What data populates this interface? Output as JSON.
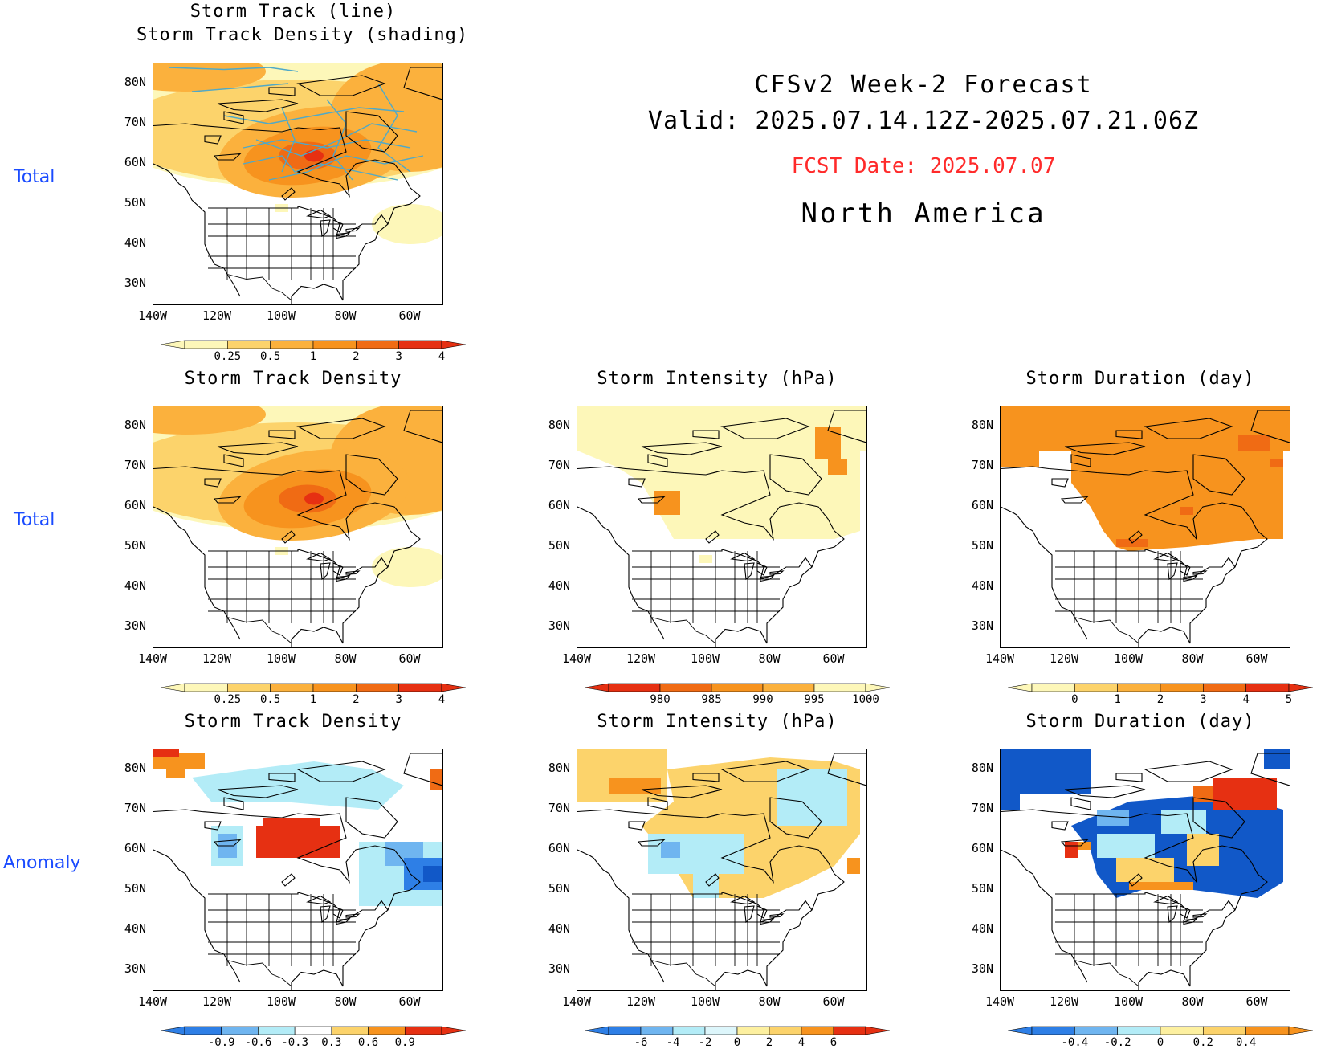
{
  "header": {
    "title": "CFSv2 Week-2 Forecast",
    "valid": "Valid: 2025.07.14.12Z-2025.07.21.06Z",
    "fcst_date": "FCST Date: 2025.07.07",
    "region": "North America"
  },
  "row_labels": [
    "Total",
    "Total",
    "Anomaly"
  ],
  "axes": {
    "lat_labels": [
      "80N",
      "70N",
      "60N",
      "50N",
      "40N",
      "30N"
    ],
    "lon_labels": [
      "140W",
      "120W",
      "100W",
      "80W",
      "60W"
    ]
  },
  "colors": {
    "pale_yellow": "#fdf7b9",
    "light_orange": "#fcd36b",
    "mid_orange": "#fbb13d",
    "orange": "#f7931e",
    "dark_orange": "#f06b14",
    "red": "#e63012",
    "dark_red": "#b40f0f",
    "light_blue": "#b3ecf7",
    "sky_blue": "#6fb5f0",
    "blue": "#2e7fe6",
    "dark_blue": "#1158c8",
    "track_line": "#4fa9c8",
    "label_blue": "#1a4bff",
    "fcst_red": "#ff2a2a"
  },
  "panels": [
    {
      "id": "track-total",
      "title_lines": [
        "Storm Track (line)",
        "Storm Track Density (shading)"
      ],
      "colorbar_labels": [
        "0.25",
        "0.5",
        "1",
        "2",
        "3",
        "4"
      ],
      "colorbar_colors": [
        "#fdf7b9",
        "#fcd36b",
        "#fbb13d",
        "#f7931e",
        "#f06b14",
        "#e63012"
      ]
    },
    {
      "id": "density-total",
      "title_lines": [
        "Storm Track Density"
      ],
      "colorbar_labels": [
        "0.25",
        "0.5",
        "1",
        "2",
        "3",
        "4"
      ],
      "colorbar_colors": [
        "#fdf7b9",
        "#fcd36b",
        "#fbb13d",
        "#f7931e",
        "#f06b14",
        "#e63012"
      ]
    },
    {
      "id": "intensity-total",
      "title_lines": [
        "Storm Intensity (hPa)"
      ],
      "colorbar_labels": [
        "980",
        "985",
        "990",
        "995",
        "1000"
      ],
      "colorbar_colors": [
        "#e63012",
        "#f06b14",
        "#f7931e",
        "#fbb13d",
        "#fdf7b9"
      ]
    },
    {
      "id": "duration-total",
      "title_lines": [
        "Storm Duration (day)"
      ],
      "colorbar_labels": [
        "0",
        "1",
        "2",
        "3",
        "4",
        "5"
      ],
      "colorbar_colors": [
        "#fdf7b9",
        "#fcd36b",
        "#fbb13d",
        "#f7931e",
        "#f06b14",
        "#e63012"
      ]
    },
    {
      "id": "density-anom",
      "title_lines": [
        "Storm Track Density"
      ],
      "colorbar_labels": [
        "-0.9",
        "-0.6",
        "-0.3",
        "0.3",
        "0.6",
        "0.9"
      ],
      "colorbar_colors": [
        "#2e7fe6",
        "#6fb5f0",
        "#b3ecf7",
        "#ffffff",
        "#fcd36b",
        "#f7931e",
        "#e63012"
      ]
    },
    {
      "id": "intensity-anom",
      "title_lines": [
        "Storm Intensity (hPa)"
      ],
      "colorbar_labels": [
        "-6",
        "-4",
        "-2",
        "0",
        "2",
        "4",
        "6"
      ],
      "colorbar_colors": [
        "#2e7fe6",
        "#6fb5f0",
        "#b3ecf7",
        "#ddf6fb",
        "#fdf0a0",
        "#fcd36b",
        "#f7931e",
        "#e63012"
      ]
    },
    {
      "id": "duration-anom",
      "title_lines": [
        "Storm Duration (day)"
      ],
      "colorbar_labels": [
        "-0.4",
        "-0.2",
        "0",
        "0.2",
        "0.4"
      ],
      "colorbar_colors": [
        "#2e7fe6",
        "#6fb5f0",
        "#b3ecf7",
        "#fdf0a0",
        "#fcd36b",
        "#f7931e"
      ]
    }
  ]
}
